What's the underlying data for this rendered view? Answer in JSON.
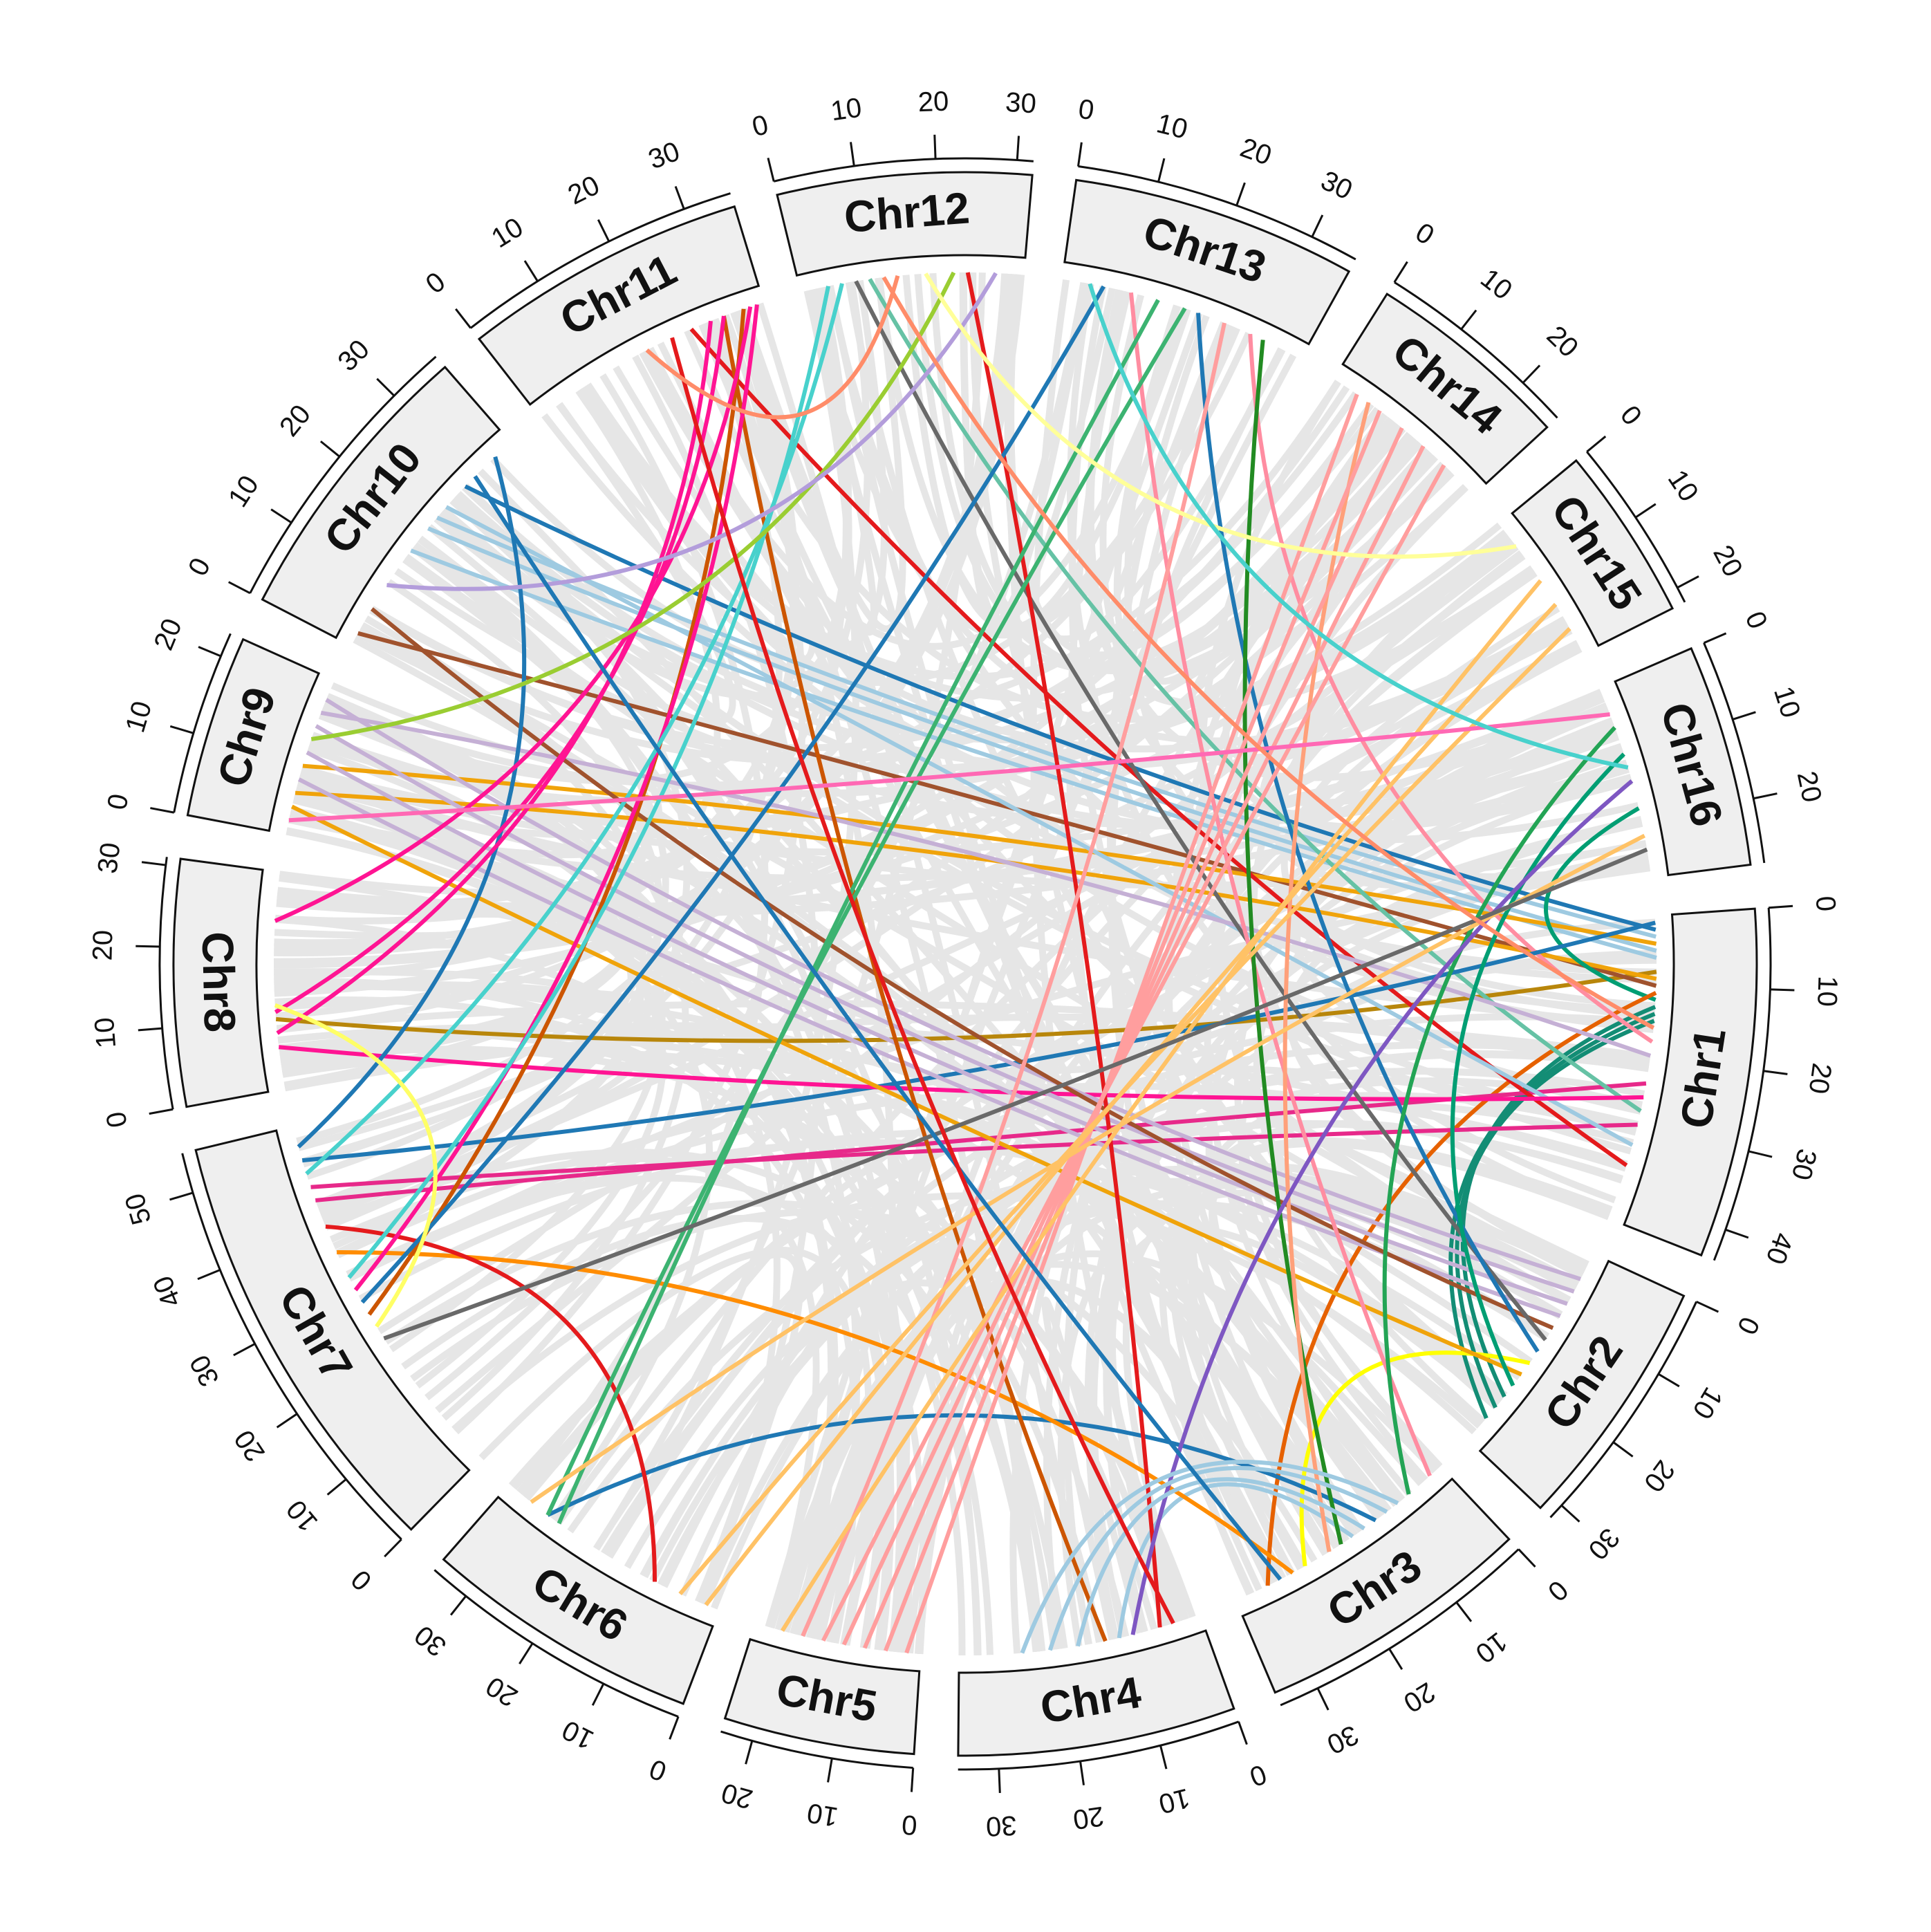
{
  "chart_data": {
    "type": "circos",
    "description_text": "",
    "chromosomes": [
      {
        "name": "Chr1",
        "length": 44,
        "ticks": [
          0,
          10,
          20,
          30,
          40
        ]
      },
      {
        "name": "Chr2",
        "length": 32,
        "ticks": [
          0,
          10,
          20,
          30
        ]
      },
      {
        "name": "Chr3",
        "length": 35,
        "ticks": [
          0,
          10,
          20,
          30
        ]
      },
      {
        "name": "Chr4",
        "length": 35,
        "ticks": [
          0,
          10,
          20,
          30
        ]
      },
      {
        "name": "Chr5",
        "length": 24,
        "ticks": [
          0,
          10,
          20
        ]
      },
      {
        "name": "Chr6",
        "length": 35,
        "ticks": [
          0,
          10,
          20,
          30
        ]
      },
      {
        "name": "Chr7",
        "length": 55,
        "ticks": [
          0,
          10,
          20,
          30,
          40,
          50
        ]
      },
      {
        "name": "Chr8",
        "length": 31,
        "ticks": [
          0,
          10,
          20,
          30
        ]
      },
      {
        "name": "Chr9",
        "length": 23,
        "ticks": [
          0,
          10,
          20
        ]
      },
      {
        "name": "Chr10",
        "length": 37,
        "ticks": [
          0,
          10,
          20,
          30
        ]
      },
      {
        "name": "Chr11",
        "length": 36,
        "ticks": [
          0,
          10,
          20,
          30
        ]
      },
      {
        "name": "Chr12",
        "length": 32,
        "ticks": [
          0,
          10,
          20,
          30
        ]
      },
      {
        "name": "Chr13",
        "length": 36,
        "ticks": [
          0,
          10,
          20,
          30
        ]
      },
      {
        "name": "Chr14",
        "length": 26,
        "ticks": [
          0,
          10,
          20
        ]
      },
      {
        "name": "Chr15",
        "length": 22,
        "ticks": [
          0,
          10,
          20
        ]
      },
      {
        "name": "Chr16",
        "length": 28,
        "ticks": [
          0,
          10,
          20
        ]
      }
    ],
    "links": [
      {
        "from": [
          "Chr1",
          2
        ],
        "to": [
          "Chr10",
          28
        ],
        "color": "#1f78b4"
      },
      {
        "from": [
          "Chr1",
          3
        ],
        "to": [
          "Chr10",
          22
        ],
        "color": "#9ecae1"
      },
      {
        "from": [
          "Chr1",
          5
        ],
        "to": [
          "Chr10",
          20
        ],
        "color": "#9ecae1"
      },
      {
        "from": [
          "Chr1",
          6
        ],
        "to": [
          "Chr10",
          16
        ],
        "color": "#9ecae1"
      },
      {
        "from": [
          "Chr1",
          8
        ],
        "to": [
          "Chr8",
          10
        ],
        "color": "#b8860b"
      },
      {
        "from": [
          "Chr1",
          10
        ],
        "to": [
          "Chr10",
          2
        ],
        "color": "#a0522d"
      },
      {
        "from": [
          "Chr1",
          4
        ],
        "to": [
          "Chr9",
          10
        ],
        "color": "#f0a30a"
      },
      {
        "from": [
          "Chr1",
          9
        ],
        "to": [
          "Chr9",
          6
        ],
        "color": "#f0a30a"
      },
      {
        "from": [
          "Chr1",
          12
        ],
        "to": [
          "Chr16",
          18
        ],
        "color": "#009e73"
      },
      {
        "from": [
          "Chr1",
          14
        ],
        "to": [
          "Chr2",
          28
        ],
        "color": "#138d75"
      },
      {
        "from": [
          "Chr1",
          15
        ],
        "to": [
          "Chr2",
          26
        ],
        "color": "#138d75"
      },
      {
        "from": [
          "Chr1",
          13
        ],
        "to": [
          "Chr2",
          24
        ],
        "color": "#138d75"
      },
      {
        "from": [
          "Chr1",
          11
        ],
        "to": [
          "Chr3",
          30
        ],
        "color": "#e66100"
      },
      {
        "from": [
          "Chr1",
          24
        ],
        "to": [
          "Chr7",
          44
        ],
        "color": "#e7298a"
      },
      {
        "from": [
          "Chr1",
          30
        ],
        "to": [
          "Chr7",
          46
        ],
        "color": "#e7298a"
      },
      {
        "from": [
          "Chr1",
          36
        ],
        "to": [
          "Chr11",
          25
        ],
        "color": "#e41a1c"
      },
      {
        "from": [
          "Chr1",
          33
        ],
        "to": [
          "Chr10",
          24
        ],
        "color": "#9ecae1"
      },
      {
        "from": [
          "Chr1",
          28
        ],
        "to": [
          "Chr12",
          10
        ],
        "color": "#66c2a5"
      },
      {
        "from": [
          "Chr1",
          20
        ],
        "to": [
          "Chr9",
          18
        ],
        "color": "#c5b0d5"
      },
      {
        "from": [
          "Chr1",
          18
        ],
        "to": [
          "Chr13",
          28
        ],
        "color": "#ff8da1"
      },
      {
        "from": [
          "Chr1",
          1
        ],
        "to": [
          "Chr7",
          50
        ],
        "color": "#1f78b4"
      },
      {
        "from": [
          "Chr1",
          26
        ],
        "to": [
          "Chr8",
          6
        ],
        "color": "#ff1493"
      },
      {
        "from": [
          "Chr2",
          4
        ],
        "to": [
          "Chr9",
          20
        ],
        "color": "#c5b0d5"
      },
      {
        "from": [
          "Chr2",
          6
        ],
        "to": [
          "Chr9",
          16
        ],
        "color": "#c5b0d5"
      },
      {
        "from": [
          "Chr2",
          8
        ],
        "to": [
          "Chr9",
          12
        ],
        "color": "#c5b0d5"
      },
      {
        "from": [
          "Chr2",
          10
        ],
        "to": [
          "Chr9",
          8
        ],
        "color": "#c5b0d5"
      },
      {
        "from": [
          "Chr2",
          12
        ],
        "to": [
          "Chr10",
          6
        ],
        "color": "#a0522d"
      },
      {
        "from": [
          "Chr2",
          14
        ],
        "to": [
          "Chr12",
          8
        ],
        "color": "#696969"
      },
      {
        "from": [
          "Chr2",
          16
        ],
        "to": [
          "Chr13",
          20
        ],
        "color": "#1f78b4"
      },
      {
        "from": [
          "Chr2",
          18
        ],
        "to": [
          "Chr3",
          24
        ],
        "color": "#ffff00"
      },
      {
        "from": [
          "Chr2",
          20
        ],
        "to": [
          "Chr9",
          4
        ],
        "color": "#f0a30a"
      },
      {
        "from": [
          "Chr2",
          22
        ],
        "to": [
          "Chr16",
          10
        ],
        "color": "#009e73"
      },
      {
        "from": [
          "Chr3",
          2
        ],
        "to": [
          "Chr13",
          10
        ],
        "color": "#ff8da1"
      },
      {
        "from": [
          "Chr3",
          6
        ],
        "to": [
          "Chr16",
          6
        ],
        "color": "#23a455"
      },
      {
        "from": [
          "Chr3",
          12
        ],
        "to": [
          "Chr6",
          28
        ],
        "color": "#1f78b4"
      },
      {
        "from": [
          "Chr3",
          16
        ],
        "to": [
          "Chr4",
          12
        ],
        "color": "#9ecae1"
      },
      {
        "from": [
          "Chr3",
          18
        ],
        "to": [
          "Chr13",
          30
        ],
        "color": "#228b22"
      },
      {
        "from": [
          "Chr3",
          20
        ],
        "to": [
          "Chr14",
          6
        ],
        "color": "#ffa07a"
      },
      {
        "from": [
          "Chr3",
          26
        ],
        "to": [
          "Chr7",
          36
        ],
        "color": "#ff8c00"
      },
      {
        "from": [
          "Chr4",
          6
        ],
        "to": [
          "Chr12",
          24
        ],
        "color": "#e41a1c"
      },
      {
        "from": [
          "Chr4",
          10
        ],
        "to": [
          "Chr16",
          14
        ],
        "color": "#7e57c2"
      },
      {
        "from": [
          "Chr4",
          14
        ],
        "to": [
          "Chr11",
          30
        ],
        "color": "#cc5500"
      },
      {
        "from": [
          "Chr4",
          18
        ],
        "to": [
          "Chr3",
          14
        ],
        "color": "#9ecae1"
      },
      {
        "from": [
          "Chr4",
          22
        ],
        "to": [
          "Chr3",
          10
        ],
        "color": "#9ecae1"
      },
      {
        "from": [
          "Chr4",
          26
        ],
        "to": [
          "Chr3",
          8
        ],
        "color": "#9ecae1"
      },
      {
        "from": [
          "Chr5",
          2
        ],
        "to": [
          "Chr14",
          4
        ],
        "color": "#ff9e9e"
      },
      {
        "from": [
          "Chr5",
          5
        ],
        "to": [
          "Chr14",
          8
        ],
        "color": "#ff9e9e"
      },
      {
        "from": [
          "Chr5",
          8
        ],
        "to": [
          "Chr14",
          12
        ],
        "color": "#ff9e9e"
      },
      {
        "from": [
          "Chr5",
          11
        ],
        "to": [
          "Chr14",
          16
        ],
        "color": "#ff9e9e"
      },
      {
        "from": [
          "Chr5",
          14
        ],
        "to": [
          "Chr14",
          20
        ],
        "color": "#ff9e9e"
      },
      {
        "from": [
          "Chr5",
          17
        ],
        "to": [
          "Chr13",
          24
        ],
        "color": "#ff9e9e"
      },
      {
        "from": [
          "Chr5",
          20
        ],
        "to": [
          "Chr15",
          10
        ],
        "color": "#ffc266"
      },
      {
        "from": [
          "Chr6",
          2
        ],
        "to": [
          "Chr15",
          14
        ],
        "color": "#ffc266"
      },
      {
        "from": [
          "Chr6",
          6
        ],
        "to": [
          "Chr15",
          18
        ],
        "color": "#ffc266"
      },
      {
        "from": [
          "Chr6",
          10
        ],
        "to": [
          "Chr7",
          40
        ],
        "color": "#e41a1c"
      },
      {
        "from": [
          "Chr6",
          26
        ],
        "to": [
          "Chr13",
          14
        ],
        "color": "#3cb371"
      },
      {
        "from": [
          "Chr6",
          28
        ],
        "to": [
          "Chr13",
          18
        ],
        "color": "#3cb371"
      },
      {
        "from": [
          "Chr6",
          31
        ],
        "to": [
          "Chr16",
          22
        ],
        "color": "#ffc266"
      },
      {
        "from": [
          "Chr7",
          22
        ],
        "to": [
          "Chr16",
          24
        ],
        "color": "#696969"
      },
      {
        "from": [
          "Chr7",
          26
        ],
        "to": [
          "Chr11",
          33
        ],
        "color": "#cc5500"
      },
      {
        "from": [
          "Chr7",
          28
        ],
        "to": [
          "Chr13",
          6
        ],
        "color": "#1f78b4"
      },
      {
        "from": [
          "Chr7",
          30
        ],
        "to": [
          "Chr11",
          35
        ],
        "color": "#ff1493"
      },
      {
        "from": [
          "Chr7",
          32
        ],
        "to": [
          "Chr12",
          4
        ],
        "color": "#48d1cc"
      },
      {
        "from": [
          "Chr7",
          48
        ],
        "to": [
          "Chr12",
          6
        ],
        "color": "#48d1cc"
      },
      {
        "from": [
          "Chr7",
          52
        ],
        "to": [
          "Chr10",
          34
        ],
        "color": "#1f78b4"
      },
      {
        "from": [
          "Chr8",
          8
        ],
        "to": [
          "Chr11",
          28
        ],
        "color": "#ff1493"
      },
      {
        "from": [
          "Chr8",
          11
        ],
        "to": [
          "Chr11",
          30
        ],
        "color": "#ff1493"
      },
      {
        "from": [
          "Chr8",
          24
        ],
        "to": [
          "Chr11",
          34
        ],
        "color": "#ff1493"
      },
      {
        "from": [
          "Chr8",
          12
        ],
        "to": [
          "Chr7",
          24
        ],
        "color": "#ffff66"
      },
      {
        "from": [
          "Chr9",
          14
        ],
        "to": [
          "Chr12",
          22
        ],
        "color": "#9acd32"
      },
      {
        "from": [
          "Chr9",
          2
        ],
        "to": [
          "Chr16",
          4
        ],
        "color": "#ff69b4"
      },
      {
        "from": [
          "Chr10",
          10
        ],
        "to": [
          "Chr12",
          28
        ],
        "color": "#b39ddb"
      },
      {
        "from": [
          "Chr10",
          30
        ],
        "to": [
          "Chr3",
          28
        ],
        "color": "#1f78b4"
      },
      {
        "from": [
          "Chr11",
          22
        ],
        "to": [
          "Chr4",
          4
        ],
        "color": "#e41a1c"
      },
      {
        "from": [
          "Chr12",
          12
        ],
        "to": [
          "Chr1",
          16
        ],
        "color": "#ff8c69"
      },
      {
        "from": [
          "Chr12",
          14
        ],
        "to": [
          "Chr11",
          18
        ],
        "color": "#ff8c69"
      },
      {
        "from": [
          "Chr12",
          18
        ],
        "to": [
          "Chr15",
          4
        ],
        "color": "#ffff99"
      },
      {
        "from": [
          "Chr13",
          4
        ],
        "to": [
          "Chr16",
          12
        ],
        "color": "#48d1cc"
      }
    ]
  }
}
